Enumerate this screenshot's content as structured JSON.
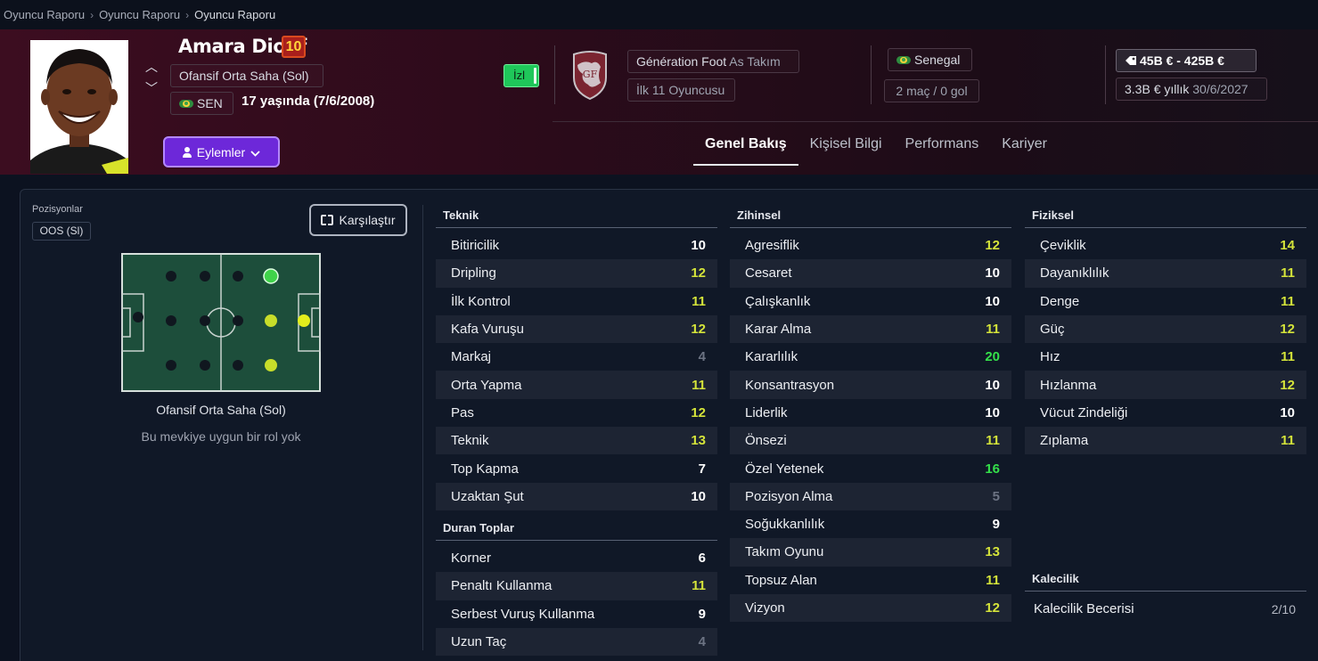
{
  "breadcrumb": [
    "Oyuncu Raporu",
    "Oyuncu Raporu",
    "Oyuncu Raporu"
  ],
  "player": {
    "name": "Amara Diouf",
    "number": "10",
    "position": "Ofansif Orta Saha (Sol)",
    "nation_code": "SEN",
    "age": "17 yaşında (7/6/2008)",
    "watch_label": "İzl"
  },
  "club": {
    "name": "Génération Foot",
    "team": "As Takım",
    "status": "İlk 11 Oyuncusu"
  },
  "nation": {
    "name": "Senegal",
    "caps": "2 maç / 0 gol"
  },
  "value": {
    "range": "45B € - 425B €",
    "wage": "3.3B € yıllık",
    "contract": "30/6/2027"
  },
  "actions_label": "Eylemler",
  "tabs": [
    "Genel Bakış",
    "Kişisel Bilgi",
    "Performans",
    "Kariyer"
  ],
  "positions": {
    "title": "Pozisyonlar",
    "chip": "OOS (Sl)",
    "compare_label": "Karşılaştır",
    "pitch_label": "Ofansif Orta Saha (Sol)",
    "note": "Bu mevkiye uygun bir rol yok"
  },
  "colors": {
    "white": "#ffffff",
    "yellow": "#d4e33a",
    "green": "#34e04a",
    "grey": "#6c7383"
  },
  "technical": {
    "title": "Teknik",
    "rows": [
      {
        "label": "Bitiricilik",
        "value": "10",
        "tone": "white"
      },
      {
        "label": "Dripling",
        "value": "12",
        "tone": "yellow"
      },
      {
        "label": "İlk Kontrol",
        "value": "11",
        "tone": "yellow"
      },
      {
        "label": "Kafa Vuruşu",
        "value": "12",
        "tone": "yellow"
      },
      {
        "label": "Markaj",
        "value": "4",
        "tone": "grey"
      },
      {
        "label": "Orta Yapma",
        "value": "11",
        "tone": "yellow"
      },
      {
        "label": "Pas",
        "value": "12",
        "tone": "yellow"
      },
      {
        "label": "Teknik",
        "value": "13",
        "tone": "yellow"
      },
      {
        "label": "Top Kapma",
        "value": "7",
        "tone": "white"
      },
      {
        "label": "Uzaktan Şut",
        "value": "10",
        "tone": "white"
      }
    ]
  },
  "set_pieces": {
    "title": "Duran Toplar",
    "rows": [
      {
        "label": "Korner",
        "value": "6",
        "tone": "white"
      },
      {
        "label": "Penaltı Kullanma",
        "value": "11",
        "tone": "yellow"
      },
      {
        "label": "Serbest Vuruş Kullanma",
        "value": "9",
        "tone": "white"
      },
      {
        "label": "Uzun Taç",
        "value": "4",
        "tone": "grey"
      }
    ]
  },
  "mental": {
    "title": "Zihinsel",
    "rows": [
      {
        "label": "Agresiflik",
        "value": "12",
        "tone": "yellow"
      },
      {
        "label": "Cesaret",
        "value": "10",
        "tone": "white"
      },
      {
        "label": "Çalışkanlık",
        "value": "10",
        "tone": "white"
      },
      {
        "label": "Karar Alma",
        "value": "11",
        "tone": "yellow"
      },
      {
        "label": "Kararlılık",
        "value": "20",
        "tone": "green"
      },
      {
        "label": "Konsantrasyon",
        "value": "10",
        "tone": "white"
      },
      {
        "label": "Liderlik",
        "value": "10",
        "tone": "white"
      },
      {
        "label": "Önsezi",
        "value": "11",
        "tone": "yellow"
      },
      {
        "label": "Özel Yetenek",
        "value": "16",
        "tone": "green"
      },
      {
        "label": "Pozisyon Alma",
        "value": "5",
        "tone": "grey"
      },
      {
        "label": "Soğukkanlılık",
        "value": "9",
        "tone": "white"
      },
      {
        "label": "Takım Oyunu",
        "value": "13",
        "tone": "yellow"
      },
      {
        "label": "Topsuz Alan",
        "value": "11",
        "tone": "yellow"
      },
      {
        "label": "Vizyon",
        "value": "12",
        "tone": "yellow"
      }
    ]
  },
  "physical": {
    "title": "Fiziksel",
    "rows": [
      {
        "label": "Çeviklik",
        "value": "14",
        "tone": "yellow"
      },
      {
        "label": "Dayanıklılık",
        "value": "11",
        "tone": "yellow"
      },
      {
        "label": "Denge",
        "value": "11",
        "tone": "yellow"
      },
      {
        "label": "Güç",
        "value": "12",
        "tone": "yellow"
      },
      {
        "label": "Hız",
        "value": "11",
        "tone": "yellow"
      },
      {
        "label": "Hızlanma",
        "value": "12",
        "tone": "yellow"
      },
      {
        "label": "Vücut Zindeliği",
        "value": "10",
        "tone": "white"
      },
      {
        "label": "Zıplama",
        "value": "11",
        "tone": "yellow"
      }
    ]
  },
  "goalkeeping": {
    "title": "Kalecilik",
    "label": "Kalecilik Becerisi",
    "value": "2/10"
  }
}
